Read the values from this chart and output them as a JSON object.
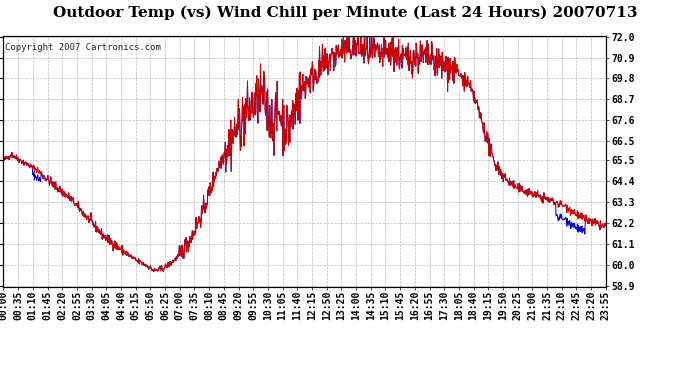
{
  "title": "Outdoor Temp (vs) Wind Chill per Minute (Last 24 Hours) 20070713",
  "copyright_text": "Copyright 2007 Cartronics.com",
  "ylim": [
    58.9,
    72.0
  ],
  "yticks": [
    58.9,
    60.0,
    61.1,
    62.2,
    63.3,
    64.4,
    65.5,
    66.5,
    67.6,
    68.7,
    69.8,
    70.9,
    72.0
  ],
  "x_tick_labels": [
    "00:00",
    "00:35",
    "01:10",
    "01:45",
    "02:20",
    "02:55",
    "03:30",
    "04:05",
    "04:40",
    "05:15",
    "05:50",
    "06:25",
    "07:00",
    "07:35",
    "08:10",
    "08:45",
    "09:20",
    "09:55",
    "10:30",
    "11:05",
    "11:40",
    "12:15",
    "12:50",
    "13:25",
    "14:00",
    "14:35",
    "15:10",
    "15:45",
    "16:20",
    "16:55",
    "17:30",
    "18:05",
    "18:40",
    "19:15",
    "19:50",
    "20:25",
    "21:00",
    "21:35",
    "22:10",
    "22:45",
    "23:20",
    "23:55"
  ],
  "line_color_red": "#cc0000",
  "line_color_blue": "#0000cc",
  "bg_color": "#ffffff",
  "grid_color": "#bbbbbb",
  "title_fontsize": 11,
  "tick_fontsize": 7,
  "copyright_fontsize": 6.5
}
